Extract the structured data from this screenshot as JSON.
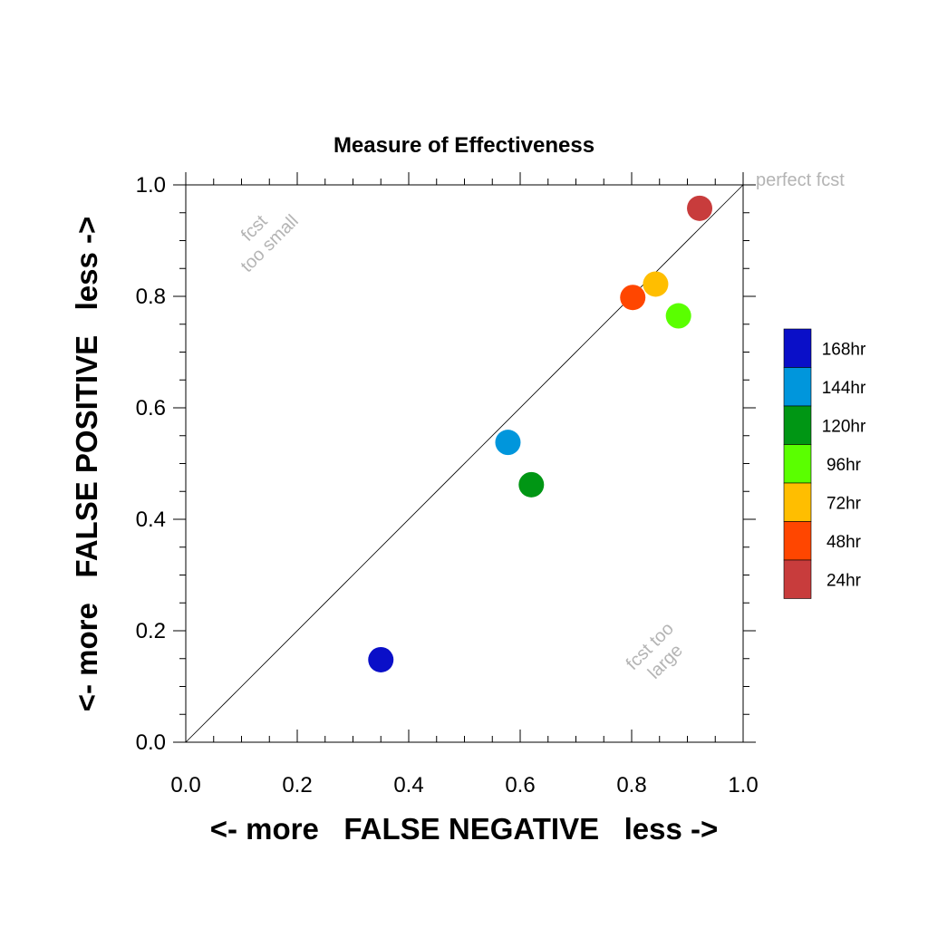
{
  "chart_data": {
    "type": "scatter",
    "title": "Measure of Effectiveness",
    "xlabel": "<- more   FALSE NEGATIVE   less ->",
    "ylabel": "<- more   FALSE POSITIVE   less ->",
    "xlim": [
      0.0,
      1.0
    ],
    "ylim": [
      0.0,
      1.0
    ],
    "xticks": [
      "0.0",
      "0.2",
      "0.4",
      "0.6",
      "0.8",
      "1.0"
    ],
    "yticks": [
      "0.0",
      "0.2",
      "0.4",
      "0.6",
      "0.8",
      "1.0"
    ],
    "grid": false,
    "diagonal_line": true,
    "legend_position": "right",
    "annotations": {
      "perfect": "perfect fcst",
      "small_line1": "fcst",
      "small_line2": "too small",
      "large_line1": "fcst too",
      "large_line2": "large"
    },
    "series": [
      {
        "name": "168hr",
        "color": "#0a0fc8",
        "x": 0.35,
        "y": 0.148
      },
      {
        "name": "144hr",
        "color": "#0096dc",
        "x": 0.578,
        "y": 0.538
      },
      {
        "name": "120hr",
        "color": "#009614",
        "x": 0.62,
        "y": 0.462
      },
      {
        "name": "96hr",
        "color": "#5aff00",
        "x": 0.884,
        "y": 0.765
      },
      {
        "name": "72hr",
        "color": "#ffbe00",
        "x": 0.843,
        "y": 0.822
      },
      {
        "name": "48hr",
        "color": "#ff4600",
        "x": 0.802,
        "y": 0.798
      },
      {
        "name": "24hr",
        "color": "#c83c3c",
        "x": 0.922,
        "y": 0.958
      }
    ]
  }
}
